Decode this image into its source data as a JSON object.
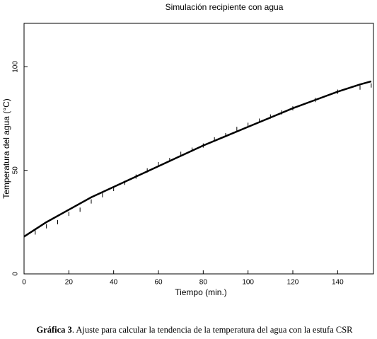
{
  "chart_data": {
    "type": "line",
    "title": "Simulación recipiente con agua",
    "xlabel": "Tiempo (min.)",
    "ylabel": "Temperatura del agua (°C)",
    "xlim": [
      0,
      156
    ],
    "ylim": [
      0,
      121
    ],
    "xticks": [
      0,
      20,
      40,
      60,
      80,
      100,
      120,
      140
    ],
    "yticks": [
      0,
      50,
      100
    ],
    "series": [
      {
        "color": "#000000",
        "marker": "none",
        "x": [
          0,
          10,
          20,
          30,
          40,
          50,
          60,
          70,
          80,
          90,
          100,
          110,
          120,
          130,
          140,
          150,
          155
        ],
        "values": [
          18,
          25,
          31,
          37,
          42,
          47,
          52,
          57,
          62,
          66.5,
          71,
          75.5,
          80,
          84,
          88,
          91.5,
          93
        ]
      },
      {
        "color": "#000000",
        "marker": "dash",
        "x": [
          5,
          10,
          15,
          20,
          25,
          30,
          35,
          40,
          45,
          50,
          55,
          60,
          65,
          70,
          75,
          80,
          85,
          90,
          95,
          100,
          105,
          110,
          115,
          120,
          130,
          140,
          150,
          155
        ],
        "values": [
          20,
          23,
          25,
          29,
          31,
          35,
          38,
          41,
          44,
          47,
          50,
          53,
          55,
          58,
          60,
          62,
          65,
          67,
          70,
          72,
          74,
          76,
          78,
          80,
          84,
          88,
          90,
          91
        ]
      }
    ]
  },
  "caption": {
    "label": "Gráfica 3",
    "text": ". Ajuste para calcular la tendencia de la temperatura del agua con la estufa CSR"
  }
}
